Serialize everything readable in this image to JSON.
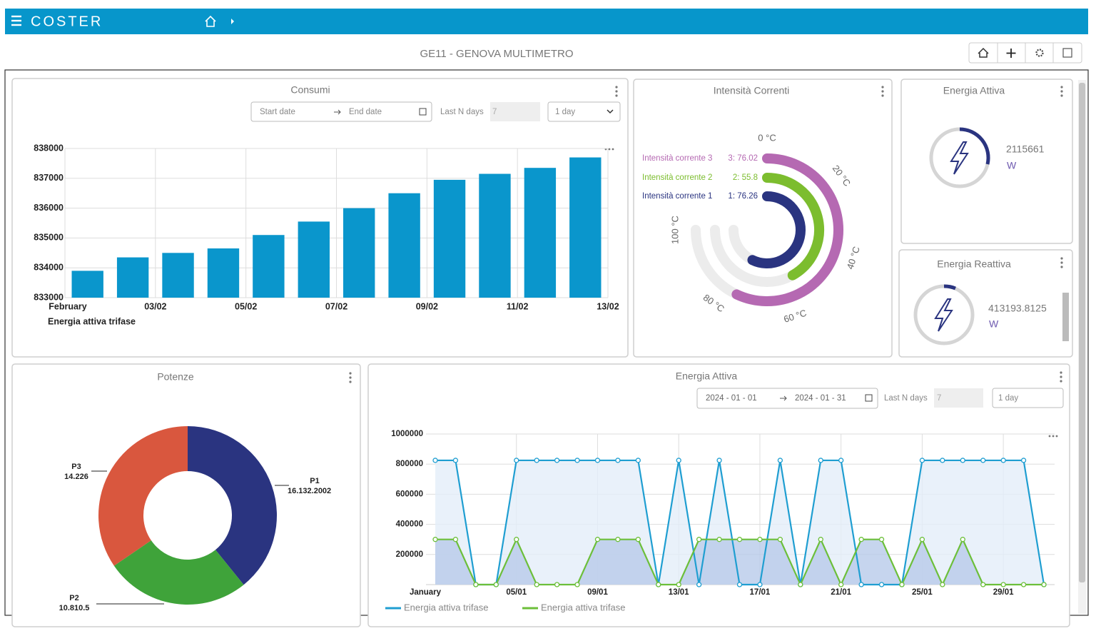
{
  "header": {
    "brand": "COSTER"
  },
  "page_title": "GE11 - GENOVA MULTIMETRO",
  "consumi": {
    "title": "Consumi",
    "start_date": "Start date",
    "end_date": "End date",
    "last_n_label": "Last N days",
    "last_n": "7",
    "interval": "1 day",
    "chart": {
      "type": "bar",
      "color": "#0a96cc",
      "x": [
        1,
        2,
        3,
        4,
        5,
        6,
        7,
        8,
        9,
        10,
        11,
        12
      ],
      "values": [
        833900,
        834350,
        834500,
        834650,
        835100,
        835550,
        836000,
        836500,
        836950,
        837150,
        837350,
        837700
      ],
      "xlim": [
        1,
        13
      ],
      "xticks": [
        {
          "value": 1,
          "label": "February"
        },
        {
          "value": 3,
          "label": "03/02"
        },
        {
          "value": 5,
          "label": "05/02"
        },
        {
          "value": 7,
          "label": "07/02"
        },
        {
          "value": 9,
          "label": "09/02"
        },
        {
          "value": 11,
          "label": "11/02"
        },
        {
          "value": 13,
          "label": "13/02"
        }
      ],
      "x_axis_title": "Energia attiva trifase",
      "ylim": [
        833000,
        838000
      ],
      "yticks": [
        833000,
        834000,
        835000,
        836000,
        837000,
        838000
      ],
      "grid": true
    }
  },
  "intensita": {
    "title": "Intensità Correnti",
    "chart": {
      "type": "radial",
      "lim": [
        0,
        100
      ],
      "ticks": [
        {
          "value": 0,
          "label": "0 °C"
        },
        {
          "value": 20,
          "label": "20 °C"
        },
        {
          "value": 40,
          "label": "40 °C"
        },
        {
          "value": 60,
          "label": "60 °C"
        },
        {
          "value": 80,
          "label": "80 °C"
        },
        {
          "value": 100,
          "label": "100 °C"
        }
      ],
      "series": [
        {
          "name": "Intensità corrente 3",
          "color": "#b569b2",
          "value": 76.02,
          "value_label": "3: 76.02"
        },
        {
          "name": "Intensità corrente 2",
          "color": "#7cbd2e",
          "value": 55.8,
          "value_label": "2: 55.8"
        },
        {
          "name": "Intensità corrente 1",
          "color": "#2a3480",
          "value": 76.26,
          "value_label": "1: 76.26"
        }
      ]
    }
  },
  "energia_attiva_gauge": {
    "title": "Energia Attiva",
    "value": 2115661,
    "unit": "W"
  },
  "energia_reattiva": {
    "title": "Energia Reattiva",
    "value": 413193.8125,
    "unit": "W"
  },
  "potenze": {
    "title": "Potenze",
    "chart": {
      "type": "donut",
      "categories": [
        "P1",
        "P2",
        "P3"
      ],
      "values": [
        16132.2002,
        10810.5,
        14226
      ],
      "value_labels": [
        "16.132.2002",
        "10.810.5",
        "14.226"
      ],
      "colors": [
        "#2a3480",
        "#3fa33a",
        "#d9573e"
      ]
    }
  },
  "energia_attiva": {
    "title": "Energia Attiva",
    "start_date": "2024 - 01 - 01",
    "end_date": "2024 - 01 - 31",
    "last_n_label": "Last N days",
    "last_n": "7",
    "interval": "1 day",
    "chart": {
      "type": "line",
      "x": [
        1,
        2,
        3,
        4,
        5,
        6,
        7,
        8,
        9,
        10,
        11,
        12,
        13,
        14,
        15,
        16,
        17,
        18,
        19,
        20,
        21,
        22,
        23,
        24,
        25,
        26,
        27,
        28,
        29,
        30,
        31
      ],
      "xlim": [
        1,
        31
      ],
      "xticks": [
        {
          "value": 1,
          "label": "January"
        },
        {
          "value": 5,
          "label": "05/01"
        },
        {
          "value": 9,
          "label": "09/01"
        },
        {
          "value": 13,
          "label": "13/01"
        },
        {
          "value": 17,
          "label": "17/01"
        },
        {
          "value": 21,
          "label": "21/01"
        },
        {
          "value": 25,
          "label": "25/01"
        },
        {
          "value": 29,
          "label": "29/01"
        }
      ],
      "ylim": [
        0,
        1000000
      ],
      "yticks": [
        200000,
        400000,
        600000,
        800000,
        1000000
      ],
      "grid": true,
      "series": [
        {
          "name": "Energia attiva trifase",
          "color": "#1f9ed1",
          "fill": "#e4edf9",
          "values": [
            825000,
            825000,
            0,
            0,
            825000,
            825000,
            825000,
            825000,
            825000,
            825000,
            825000,
            0,
            825000,
            0,
            825000,
            0,
            0,
            825000,
            0,
            825000,
            825000,
            0,
            0,
            0,
            825000,
            825000,
            825000,
            825000,
            825000,
            825000,
            0
          ]
        },
        {
          "name": "Energia attiva trifase",
          "color": "#6cbf3a",
          "fill": "#b8cbea",
          "values": [
            300000,
            300000,
            0,
            0,
            300000,
            0,
            0,
            0,
            300000,
            300000,
            300000,
            0,
            0,
            300000,
            300000,
            300000,
            300000,
            300000,
            0,
            300000,
            0,
            300000,
            300000,
            0,
            300000,
            0,
            300000,
            0,
            0,
            0,
            0
          ]
        }
      ]
    }
  }
}
